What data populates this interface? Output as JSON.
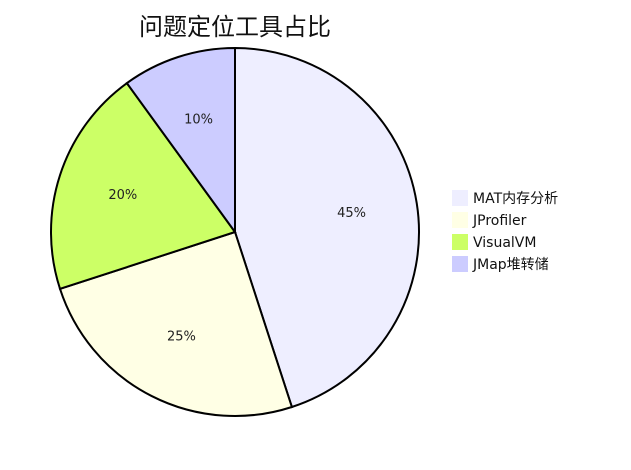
{
  "colors": {
    "stroke": "#000000",
    "background": "#ffffff"
  },
  "chart_data": {
    "type": "pie",
    "title": "问题定位工具占比",
    "categories": [
      "MAT内存分析",
      "JProfiler",
      "VisualVM",
      "JMap堆转储"
    ],
    "values": [
      45,
      25,
      20,
      10
    ],
    "labels": [
      "45%",
      "25%",
      "20%",
      "10%"
    ],
    "colors": [
      "#EEEEFF",
      "#FFFFE5",
      "#CCFF66",
      "#CCCCFF"
    ],
    "legend_position": "right"
  }
}
